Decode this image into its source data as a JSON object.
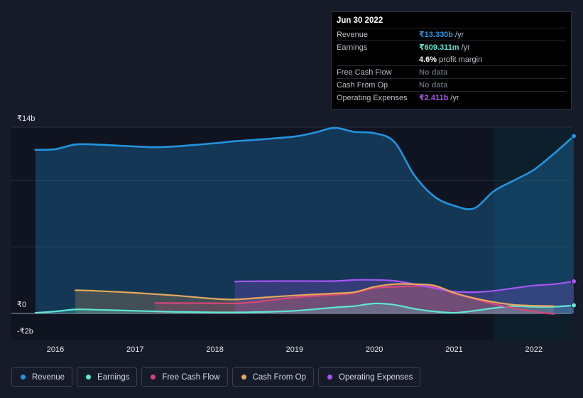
{
  "tooltip": {
    "date": "Jun 30 2022",
    "rows": [
      {
        "label": "Revenue",
        "value": "₹13.330b",
        "unit": "/yr",
        "color": "#2394df"
      },
      {
        "label": "Earnings",
        "value": "₹609.311m",
        "unit": "/yr",
        "color": "#5ee6d4"
      },
      {
        "label": "",
        "value": "4.6%",
        "unit": "profit margin",
        "color": "#ffffff"
      },
      {
        "label": "Free Cash Flow",
        "value": "No data",
        "unit": "",
        "color": "#5c6370"
      },
      {
        "label": "Cash From Op",
        "value": "No data",
        "unit": "",
        "color": "#5c6370"
      },
      {
        "label": "Operating Expenses",
        "value": "₹2.411b",
        "unit": "/yr",
        "color": "#a855f7"
      }
    ]
  },
  "legend": [
    {
      "label": "Revenue",
      "color": "#2394df"
    },
    {
      "label": "Earnings",
      "color": "#5ee6d4"
    },
    {
      "label": "Free Cash Flow",
      "color": "#d6467a"
    },
    {
      "label": "Cash From Op",
      "color": "#e8a85a"
    },
    {
      "label": "Operating Expenses",
      "color": "#a855f7"
    }
  ],
  "chart_data": {
    "type": "area",
    "title": "",
    "y_tick_labels": [
      "₹14b",
      "₹0",
      "-₹2b"
    ],
    "x_tick_labels": [
      "2016",
      "2017",
      "2018",
      "2019",
      "2020",
      "2021",
      "2022"
    ],
    "ylim": [
      -2,
      14
    ],
    "xlim": [
      2015.5,
      2022.5
    ],
    "forecast_start": 2021.5,
    "series": [
      {
        "name": "Revenue",
        "color": "#2394df",
        "fill": true,
        "x": [
          2015.75,
          2016.0,
          2016.25,
          2016.5,
          2017.0,
          2017.25,
          2017.5,
          2018.0,
          2018.25,
          2018.5,
          2019.0,
          2019.25,
          2019.5,
          2019.75,
          2020.0,
          2020.25,
          2020.5,
          2020.75,
          2021.0,
          2021.25,
          2021.5,
          2021.75,
          2022.0,
          2022.25,
          2022.5
        ],
        "y": [
          12.3,
          12.35,
          12.7,
          12.7,
          12.55,
          12.5,
          12.55,
          12.8,
          12.95,
          13.05,
          13.3,
          13.6,
          13.95,
          13.65,
          13.55,
          12.9,
          10.4,
          8.8,
          8.1,
          7.9,
          9.2,
          10.0,
          10.8,
          12.0,
          13.33
        ]
      },
      {
        "name": "Earnings",
        "color": "#5ee6d4",
        "fill": true,
        "x": [
          2015.75,
          2016.0,
          2016.25,
          2016.5,
          2017.0,
          2017.5,
          2018.0,
          2018.5,
          2019.0,
          2019.5,
          2019.75,
          2020.0,
          2020.25,
          2020.5,
          2020.75,
          2021.0,
          2021.25,
          2021.5,
          2021.75,
          2022.0,
          2022.25,
          2022.5
        ],
        "y": [
          0.05,
          0.15,
          0.3,
          0.28,
          0.2,
          0.12,
          0.08,
          0.1,
          0.2,
          0.45,
          0.55,
          0.75,
          0.65,
          0.35,
          0.15,
          0.05,
          0.2,
          0.4,
          0.55,
          0.5,
          0.5,
          0.61
        ]
      },
      {
        "name": "Free Cash Flow",
        "color": "#d6467a",
        "fill": true,
        "x": [
          2017.25,
          2017.5,
          2018.0,
          2018.25,
          2018.5,
          2019.0,
          2019.5,
          2019.75,
          2020.0,
          2020.25,
          2020.5,
          2020.75,
          2021.0,
          2021.25,
          2021.5,
          2021.75,
          2022.0,
          2022.25
        ],
        "y": [
          0.78,
          0.78,
          0.77,
          0.76,
          0.85,
          1.2,
          1.4,
          1.55,
          1.9,
          2.0,
          2.05,
          2.0,
          1.5,
          1.1,
          0.7,
          0.4,
          0.15,
          -0.05
        ]
      },
      {
        "name": "Cash From Op",
        "color": "#e8a85a",
        "fill": true,
        "x": [
          2016.25,
          2016.5,
          2017.0,
          2017.5,
          2018.0,
          2018.25,
          2018.5,
          2019.0,
          2019.5,
          2019.75,
          2020.0,
          2020.25,
          2020.5,
          2020.75,
          2021.0,
          2021.25,
          2021.5,
          2021.75,
          2022.0,
          2022.25
        ],
        "y": [
          1.75,
          1.7,
          1.55,
          1.35,
          1.1,
          1.05,
          1.15,
          1.35,
          1.5,
          1.6,
          2.0,
          2.2,
          2.2,
          2.1,
          1.55,
          1.15,
          0.85,
          0.65,
          0.58,
          0.55
        ]
      },
      {
        "name": "Operating Expenses",
        "color": "#a855f7",
        "fill": true,
        "x": [
          2018.25,
          2018.5,
          2019.0,
          2019.5,
          2019.75,
          2020.0,
          2020.25,
          2020.5,
          2020.75,
          2021.0,
          2021.25,
          2021.5,
          2021.75,
          2022.0,
          2022.25,
          2022.5
        ],
        "y": [
          2.4,
          2.42,
          2.43,
          2.43,
          2.52,
          2.52,
          2.45,
          2.2,
          1.9,
          1.65,
          1.6,
          1.7,
          1.9,
          2.1,
          2.2,
          2.41
        ]
      }
    ]
  }
}
